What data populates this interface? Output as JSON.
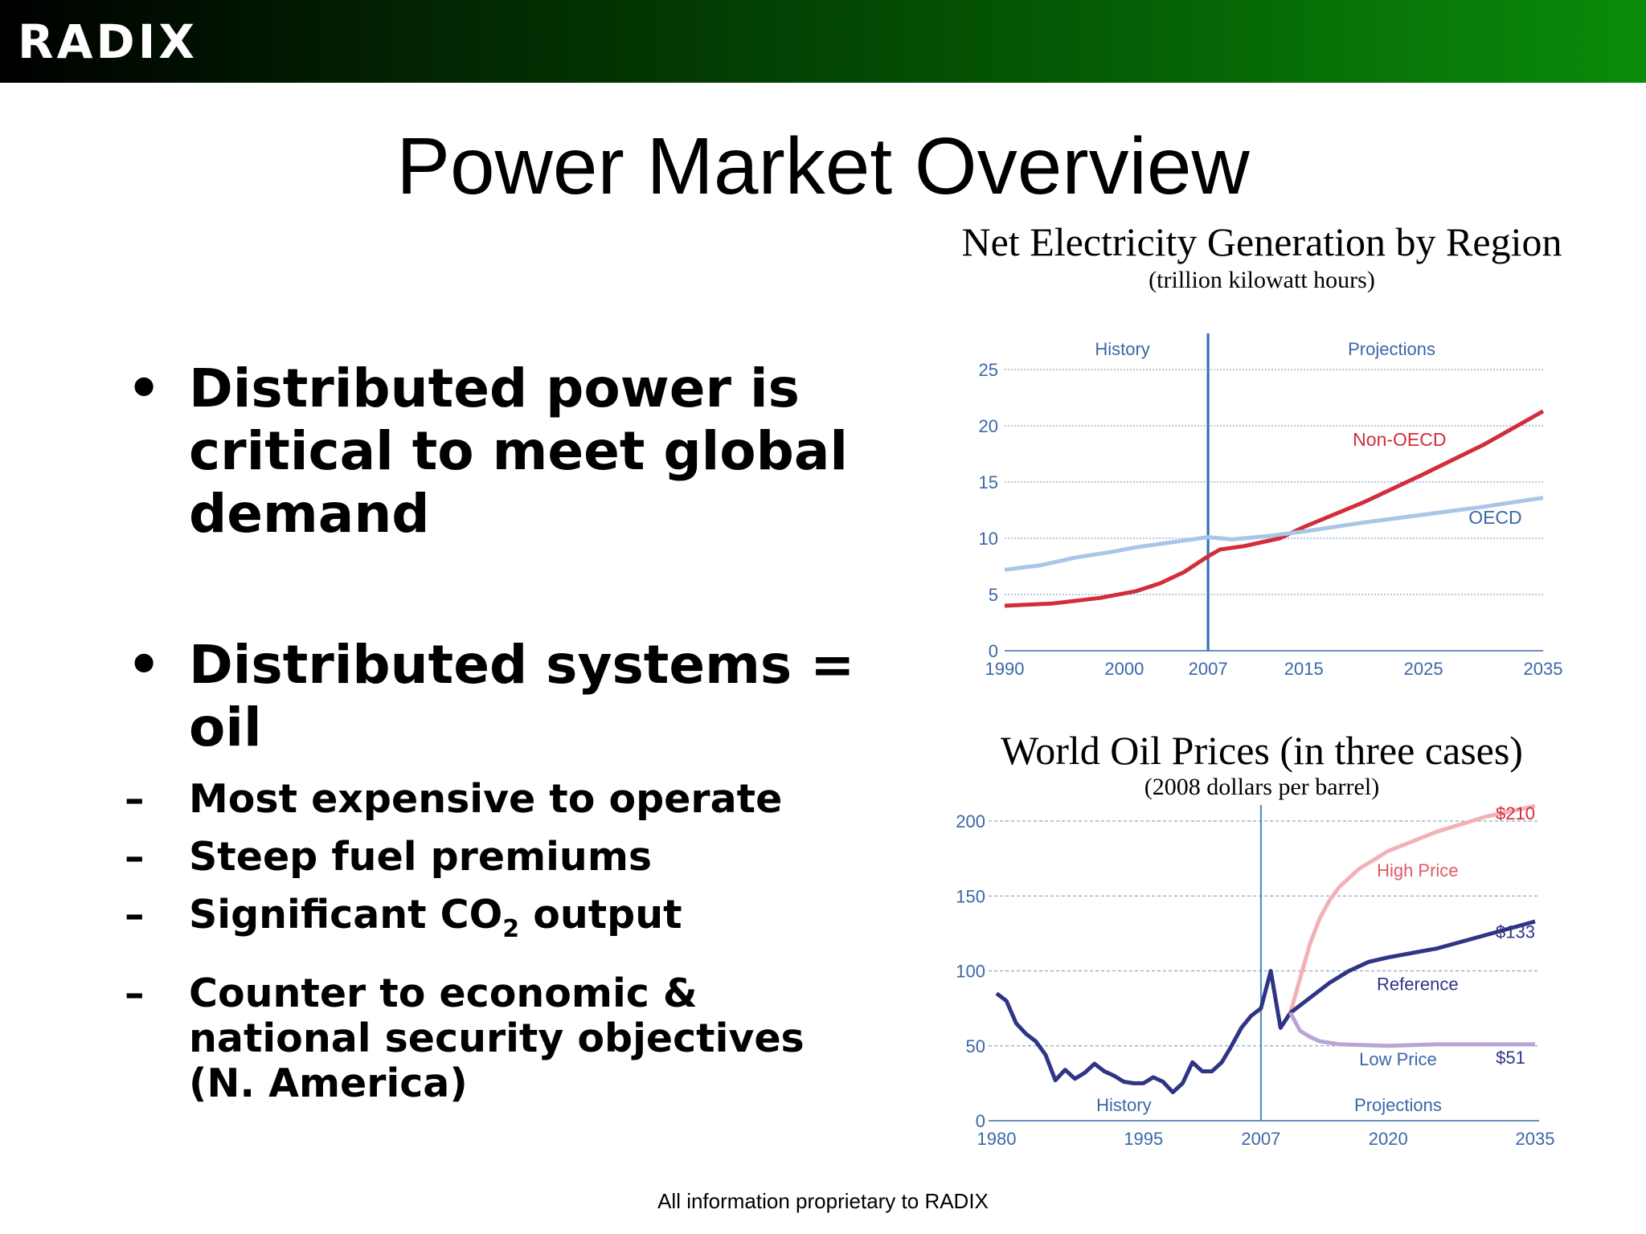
{
  "header": {
    "logo": "RADIX",
    "colors": {
      "bar_start": "#000000",
      "bar_end": "#0a8c0a"
    }
  },
  "title": "Power Market Overview",
  "bullets": [
    {
      "text": "Distributed power is critical to meet global demand"
    },
    {
      "text": "Distributed systems = oil",
      "subs": [
        "Most expensive to operate",
        "Steep fuel premiums",
        "Significant CO",
        "output",
        "Counter to economic & national security objectives (N. America)"
      ],
      "co2_subscript": "2"
    }
  ],
  "footer": "All information proprietary to RADIX",
  "chart_data": [
    {
      "type": "line",
      "title": "Net Electricity Generation by Region",
      "subtitle": "(trillion kilowatt hours)",
      "xlim": [
        1990,
        2035
      ],
      "ylim": [
        0,
        25
      ],
      "yticks": [
        0,
        5,
        10,
        15,
        20,
        25
      ],
      "xticks": [
        1990,
        2000,
        2007,
        2015,
        2025,
        2035
      ],
      "grid": true,
      "divider_year": 2007,
      "region_labels": [
        "History",
        "Projections"
      ],
      "series": [
        {
          "name": "Non-OECD",
          "color": "#d22d3a",
          "x": [
            1990,
            1994,
            1998,
            2001,
            2003,
            2005,
            2007,
            2008,
            2010,
            2013,
            2015,
            2020,
            2025,
            2030,
            2035
          ],
          "y": [
            4.0,
            4.2,
            4.7,
            5.3,
            6.0,
            7.0,
            8.4,
            9.0,
            9.3,
            10.0,
            11.0,
            13.2,
            15.7,
            18.3,
            21.3
          ]
        },
        {
          "name": "OECD",
          "color": "#a9c6e8",
          "x": [
            1990,
            1993,
            1996,
            1999,
            2001,
            2003,
            2005,
            2007,
            2009,
            2012,
            2015,
            2020,
            2025,
            2030,
            2035
          ],
          "y": [
            7.2,
            7.6,
            8.3,
            8.8,
            9.2,
            9.5,
            9.8,
            10.1,
            9.9,
            10.2,
            10.6,
            11.4,
            12.1,
            12.8,
            13.6
          ]
        }
      ]
    },
    {
      "type": "line",
      "title": "World Oil Prices (in three cases)",
      "subtitle": "(2008 dollars per barrel)",
      "xlim": [
        1980,
        2035
      ],
      "ylim": [
        0,
        200
      ],
      "yticks": [
        0,
        50,
        100,
        150,
        200
      ],
      "xticks": [
        1980,
        1995,
        2007,
        2020,
        2035
      ],
      "grid": true,
      "divider_year": 2007,
      "region_labels": [
        "History",
        "Projections"
      ],
      "series": [
        {
          "name": "History",
          "color": "#2f3585",
          "x": [
            1980,
            1981,
            1982,
            1983,
            1984,
            1985,
            1986,
            1987,
            1988,
            1989,
            1990,
            1991,
            1992,
            1993,
            1994,
            1995,
            1996,
            1997,
            1998,
            1999,
            2000,
            2001,
            2002,
            2003,
            2004,
            2005,
            2006,
            2007,
            2008,
            2009,
            2010
          ],
          "y": [
            85,
            80,
            65,
            58,
            53,
            44,
            27,
            34,
            28,
            32,
            38,
            33,
            30,
            26,
            25,
            25,
            29,
            26,
            19,
            25,
            39,
            33,
            33,
            39,
            50,
            62,
            70,
            75,
            100,
            62,
            72
          ]
        },
        {
          "name": "High Price",
          "color": "#f2b1b6",
          "end_label": "$210",
          "x": [
            2010,
            2011,
            2012,
            2013,
            2014,
            2015,
            2017,
            2020,
            2025,
            2030,
            2035
          ],
          "y": [
            72,
            95,
            118,
            135,
            147,
            156,
            168,
            180,
            193,
            203,
            210
          ]
        },
        {
          "name": "Reference",
          "color": "#2f3585",
          "end_label": "$133",
          "x": [
            2010,
            2012,
            2014,
            2016,
            2018,
            2020,
            2025,
            2030,
            2035
          ],
          "y": [
            72,
            82,
            92,
            100,
            106,
            109,
            115,
            124,
            133
          ]
        },
        {
          "name": "Low Price",
          "color": "#b9a5d4",
          "end_label": "$51",
          "x": [
            2010,
            2011,
            2012,
            2013,
            2015,
            2020,
            2025,
            2030,
            2035
          ],
          "y": [
            72,
            60,
            56,
            53,
            51,
            50,
            51,
            51,
            51
          ]
        }
      ]
    }
  ]
}
